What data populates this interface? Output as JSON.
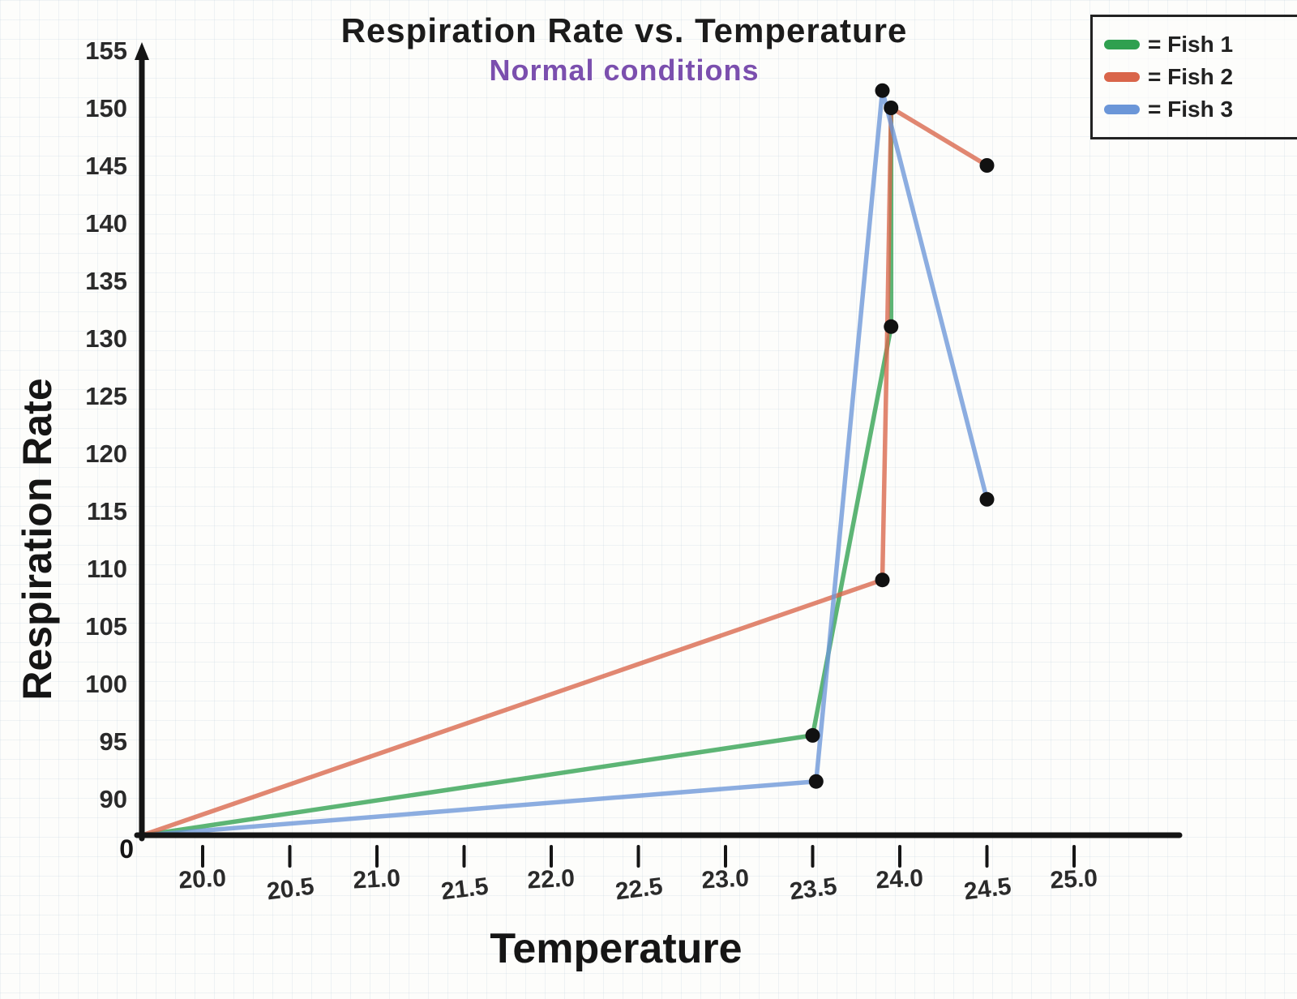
{
  "title": "Respiration Rate vs. Temperature",
  "subtitle": "Normal conditions",
  "axes": {
    "x_label": "Temperature",
    "y_label": "Respiration Rate",
    "origin_label": "0"
  },
  "legend": [
    {
      "label": "= Fish 1",
      "color": "#2fa04f"
    },
    {
      "label": "= Fish 2",
      "color": "#d9654a"
    },
    {
      "label": "= Fish 3",
      "color": "#6b96d8"
    }
  ],
  "chart_data": {
    "type": "line",
    "title": "Respiration Rate vs. Temperature",
    "subtitle": "Normal conditions",
    "xlabel": "Temperature",
    "ylabel": "Respiration Rate",
    "x_ticks": [
      "20.0",
      "20.5",
      "21.0",
      "21.5",
      "22.0",
      "22.5",
      "23.0",
      "23.5",
      "24.0",
      "24.5",
      "25.0"
    ],
    "y_ticks": [
      90,
      95,
      100,
      105,
      110,
      115,
      120,
      125,
      130,
      135,
      140,
      145,
      150,
      155
    ],
    "xlim": [
      19.65,
      25.6
    ],
    "ylim": [
      86.8,
      155
    ],
    "grid": true,
    "legend_position": "top-right",
    "series": [
      {
        "name": "Fish 1",
        "color": "#2fa04f",
        "points": [
          [
            19.65,
            86.8
          ],
          [
            23.5,
            95.5
          ],
          [
            23.95,
            131
          ],
          [
            23.95,
            150
          ]
        ]
      },
      {
        "name": "Fish 2",
        "color": "#d9654a",
        "points": [
          [
            19.65,
            86.8
          ],
          [
            23.9,
            109
          ],
          [
            23.93,
            132
          ],
          [
            23.95,
            150
          ],
          [
            24.5,
            145
          ]
        ]
      },
      {
        "name": "Fish 3",
        "color": "#6b96d8",
        "points": [
          [
            19.65,
            86.8
          ],
          [
            23.52,
            91.5
          ],
          [
            23.9,
            151.5
          ],
          [
            24.5,
            116
          ]
        ]
      }
    ],
    "markers": [
      [
        23.5,
        95.5
      ],
      [
        23.52,
        91.5
      ],
      [
        23.9,
        109
      ],
      [
        23.95,
        131
      ],
      [
        23.95,
        150
      ],
      [
        23.9,
        151.5
      ],
      [
        24.5,
        145
      ],
      [
        24.5,
        116
      ]
    ],
    "marker_color": "#111111"
  }
}
